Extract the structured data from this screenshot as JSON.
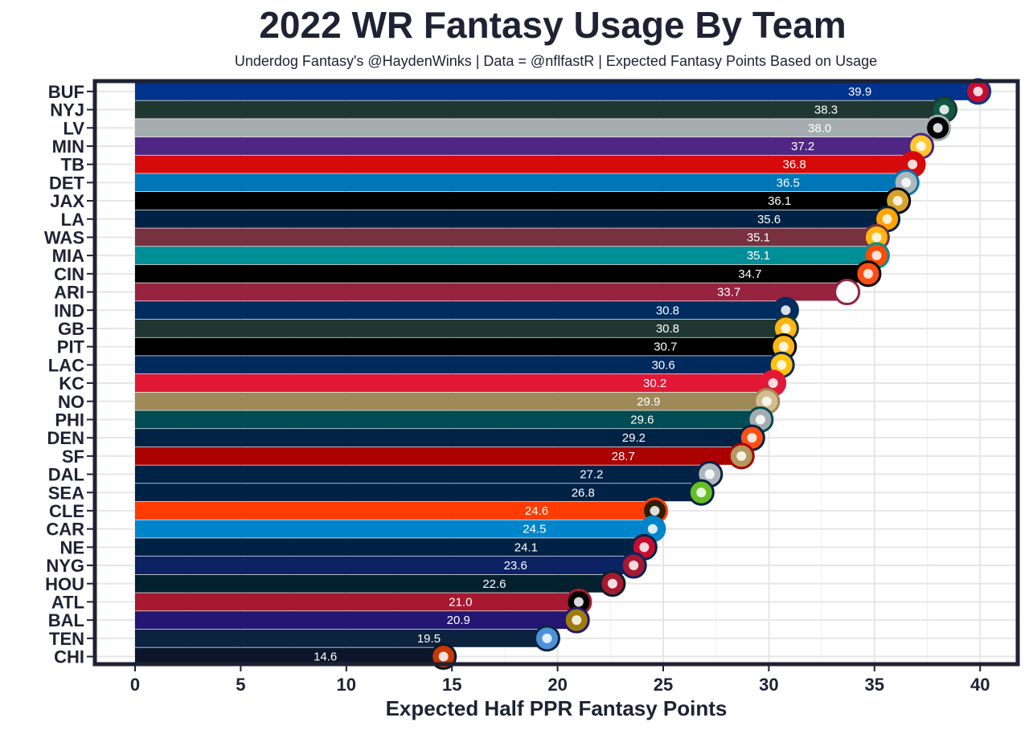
{
  "chart_data": {
    "type": "bar",
    "orientation": "horizontal",
    "title": "2022 WR Fantasy Usage By Team",
    "subtitle": "Underdog Fantasy's @HaydenWinks | Data = @nflfastR | Expected Fantasy Points Based on Usage",
    "xlabel": "Expected Half PPR Fantasy Points",
    "ylabel": "",
    "xlim": [
      0,
      41
    ],
    "xticks": [
      0,
      5,
      10,
      15,
      20,
      25,
      30,
      35,
      40
    ],
    "grid": true,
    "categories": [
      "BUF",
      "NYJ",
      "LV",
      "MIN",
      "TB",
      "DET",
      "JAX",
      "LA",
      "WAS",
      "MIA",
      "CIN",
      "ARI",
      "IND",
      "GB",
      "PIT",
      "LAC",
      "KC",
      "NO",
      "PHI",
      "DEN",
      "SF",
      "DAL",
      "SEA",
      "CLE",
      "CAR",
      "NE",
      "NYG",
      "HOU",
      "ATL",
      "BAL",
      "TEN",
      "CHI"
    ],
    "values": [
      39.9,
      38.3,
      38.0,
      37.2,
      36.8,
      36.5,
      36.1,
      35.6,
      35.1,
      35.1,
      34.7,
      33.7,
      30.8,
      30.8,
      30.7,
      30.6,
      30.2,
      29.9,
      29.6,
      29.2,
      28.7,
      27.2,
      26.8,
      24.6,
      24.5,
      24.1,
      23.6,
      22.6,
      21.0,
      20.9,
      19.5,
      14.6
    ],
    "value_labels": [
      "39.9",
      "38.3",
      "38.0",
      "37.2",
      "36.8",
      "36.5",
      "36.1",
      "35.6",
      "35.1",
      "35.1",
      "34.7",
      "33.7",
      "30.8",
      "30.8",
      "30.7",
      "30.6",
      "30.2",
      "29.9",
      "29.6",
      "29.2",
      "28.7",
      "27.2",
      "26.8",
      "24.6",
      "24.5",
      "24.1",
      "23.6",
      "22.6",
      "21.0",
      "20.9",
      "19.5",
      "14.6"
    ],
    "colors": [
      "#00338D",
      "#203731",
      "#A5ACAF",
      "#4F2683",
      "#D50A0A",
      "#0076B6",
      "#000000",
      "#002244",
      "#773141",
      "#008E97",
      "#000000",
      "#97233F",
      "#002C5F",
      "#203731",
      "#000000",
      "#002A5E",
      "#E31837",
      "#9F8958",
      "#004C54",
      "#002244",
      "#AA0000",
      "#002244",
      "#002244",
      "#FF3C00",
      "#0085CA",
      "#002244",
      "#0B2265",
      "#03202F",
      "#A71930",
      "#241773",
      "#0C2340",
      "#0B162A"
    ],
    "logo_colors": [
      "#C60C30",
      "#125740",
      "#000000",
      "#FFC62F",
      "#D50A0A",
      "#B0B7BC",
      "#D7A22A",
      "#FFA300",
      "#FFB612",
      "#FC4C02",
      "#FB4F14",
      "#FFFFFF",
      "#002C5F",
      "#FFB612",
      "#FFB612",
      "#FFC20E",
      "#E31837",
      "#D3BC8D",
      "#A5ACAF",
      "#FB4F14",
      "#B3995D",
      "#B0B7BC",
      "#69BE28",
      "#311D00",
      "#0085CA",
      "#C60C30",
      "#A71930",
      "#A71930",
      "#000000",
      "#9E7C0C",
      "#4B92DB",
      "#C83803"
    ]
  }
}
